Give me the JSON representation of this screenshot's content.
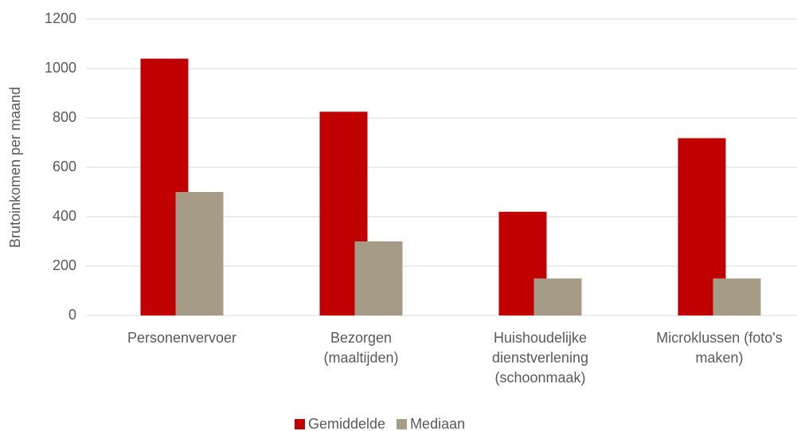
{
  "chart_data": {
    "type": "bar",
    "y_label": "Brutoinkomen per maand",
    "categories": [
      [
        "Personenvervoer"
      ],
      [
        "Bezorgen",
        "(maaltijden)"
      ],
      [
        "Huishoudelijke",
        "dienstverlening",
        "(schoonmaak)"
      ],
      [
        "Microklussen (foto's",
        "maken)"
      ]
    ],
    "series": [
      {
        "name": "Gemiddelde",
        "color": "#c00000",
        "values": [
          1040,
          825,
          420,
          718
        ]
      },
      {
        "name": "Mediaan",
        "color": "#a59b86",
        "values": [
          500,
          300,
          150,
          150
        ]
      }
    ],
    "ylim": [
      0,
      1200
    ],
    "yticks": [
      0,
      200,
      400,
      600,
      800,
      1000,
      1200
    ],
    "grid": true,
    "legend": "bottom"
  }
}
